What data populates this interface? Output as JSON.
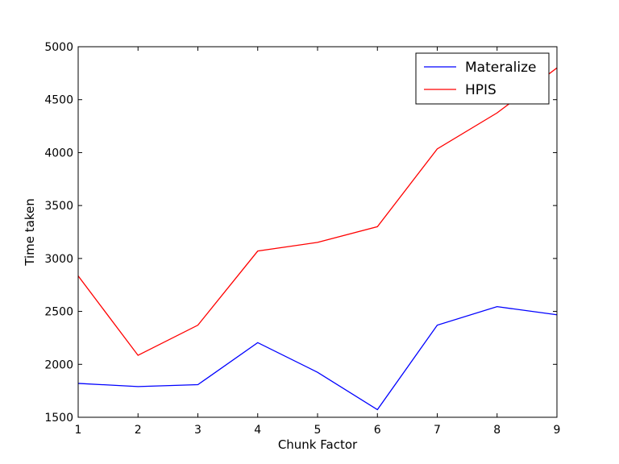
{
  "chart_data": {
    "type": "line",
    "title": "",
    "xlabel": "Chunk Factor",
    "ylabel": "Time taken",
    "x": [
      1,
      2,
      3,
      4,
      5,
      6,
      7,
      8,
      9
    ],
    "xlim": [
      1,
      9
    ],
    "ylim": [
      1500,
      5000
    ],
    "xticks": [
      "1",
      "2",
      "3",
      "4",
      "5",
      "6",
      "7",
      "8",
      "9"
    ],
    "yticks": [
      "1500",
      "2000",
      "2500",
      "3000",
      "3500",
      "4000",
      "4500",
      "5000"
    ],
    "grid": false,
    "legend_position": "top-right",
    "series": [
      {
        "name": "Materalize",
        "color": "#0000ff",
        "values": [
          1820,
          1790,
          1808,
          2205,
          1925,
          1572,
          2370,
          2545,
          2468
        ]
      },
      {
        "name": "HPIS",
        "color": "#ff0000",
        "values": [
          2835,
          2085,
          2370,
          3070,
          3152,
          3300,
          4035,
          4375,
          4800
        ]
      }
    ]
  }
}
